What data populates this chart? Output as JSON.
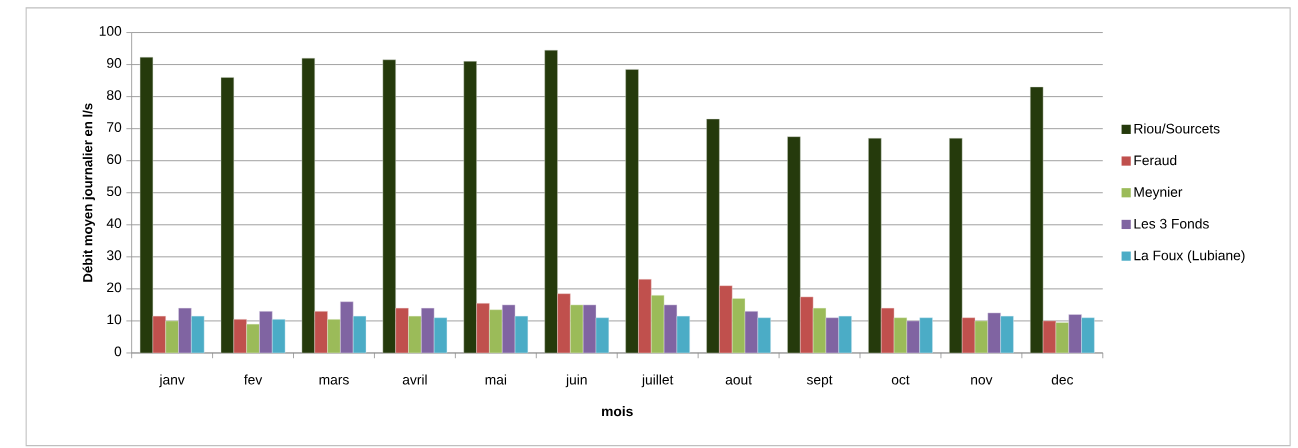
{
  "chart_data": {
    "type": "bar",
    "xlabel": "mois",
    "ylabel": "Débit moyen journalier en l/s",
    "categories": [
      "janv",
      "fev",
      "mars",
      "avril",
      "mai",
      "juin",
      "juillet",
      "aout",
      "sept",
      "oct",
      "nov",
      "dec"
    ],
    "series": [
      {
        "name": "Riou/Sourcets",
        "color": "#253a0c",
        "values": [
          92.3,
          86,
          92,
          91.5,
          91,
          94.5,
          88.5,
          73,
          67.5,
          67,
          67,
          83
        ]
      },
      {
        "name": "Feraud",
        "color": "#c0504d",
        "values": [
          11.5,
          10.5,
          13,
          14,
          15.5,
          18.5,
          23,
          21,
          17.5,
          14,
          11,
          10
        ]
      },
      {
        "name": "Meynier",
        "color": "#9bbb59",
        "values": [
          10,
          9,
          10.5,
          11.5,
          13.5,
          15,
          18,
          17,
          14,
          11,
          10,
          9.5
        ]
      },
      {
        "name": "Les 3 Fonds",
        "color": "#8064a2",
        "values": [
          14,
          13,
          16,
          14,
          15,
          15,
          15,
          13,
          11,
          10,
          12.5,
          12
        ]
      },
      {
        "name": "La Foux (Lubiane)",
        "color": "#4bacc6",
        "values": [
          11.5,
          10.5,
          11.5,
          11,
          11.5,
          11,
          11.5,
          11,
          11.5,
          11,
          11.5,
          11
        ]
      }
    ],
    "ylim": [
      0,
      100
    ],
    "yticks": [
      0,
      10,
      20,
      30,
      40,
      50,
      60,
      70,
      80,
      90,
      100
    ],
    "grid": "y",
    "legend": "right"
  }
}
